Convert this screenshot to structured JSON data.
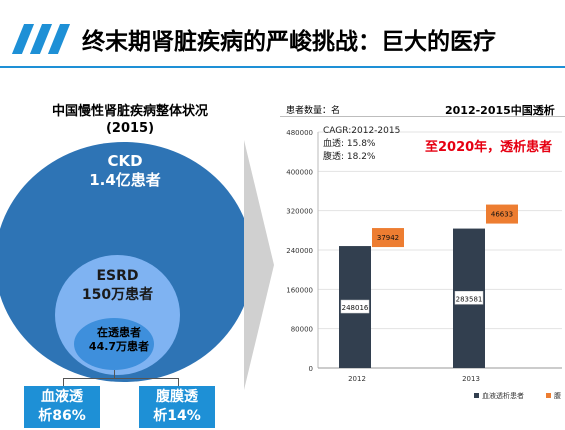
{
  "header": {
    "title": "终末期肾脏疾病的严峻挑战：巨大的医疗"
  },
  "left_panel": {
    "heading_line1": "中国慢性肾脏疾病整体状况",
    "heading_line2": "(2015)",
    "ckd": {
      "name": "CKD",
      "count": "1.4亿患者"
    },
    "esrd": {
      "name": "ESRD",
      "count": "150万患者"
    },
    "dialysis": {
      "name": "在透患者",
      "count": "44.7万患者"
    },
    "hemodialysis_box": {
      "line1": "血液透",
      "line2": "析86%"
    },
    "peritoneal_box": {
      "line1": "腹膜透",
      "line2": "析14%"
    }
  },
  "right_panel": {
    "y_axis_label": "患者数量：名",
    "chart_title": "2012-2015中国透析",
    "cagr": {
      "line1": "CAGR:2012-2015",
      "line2": "血透: 15.8%",
      "line3": "腹透: 18.2%"
    },
    "forecast_text": "至2020年，透析患者"
  },
  "colors": {
    "accent_blue": "#1e90d6",
    "ckd_blue": "#2e74b5",
    "esrd_blue": "#7fb3f2",
    "dialysis_blue": "#3e8fdc",
    "bar_dark": "#323f4f",
    "bar_orange": "#ed7d31",
    "forecast_red": "#e60012"
  },
  "chart_data": {
    "type": "bar",
    "categories": [
      "2012",
      "2013"
    ],
    "series": [
      {
        "name": "血液透析患者",
        "values": [
          248016,
          283581
        ]
      },
      {
        "name": "腹",
        "values": [
          37942,
          46633
        ]
      }
    ],
    "y_ticks": [
      "0",
      "80000",
      "160000",
      "240000",
      "320000",
      "400000",
      "480000"
    ],
    "ylim": [
      0,
      480000
    ],
    "legend_position": "bottom-right",
    "grid": true
  }
}
